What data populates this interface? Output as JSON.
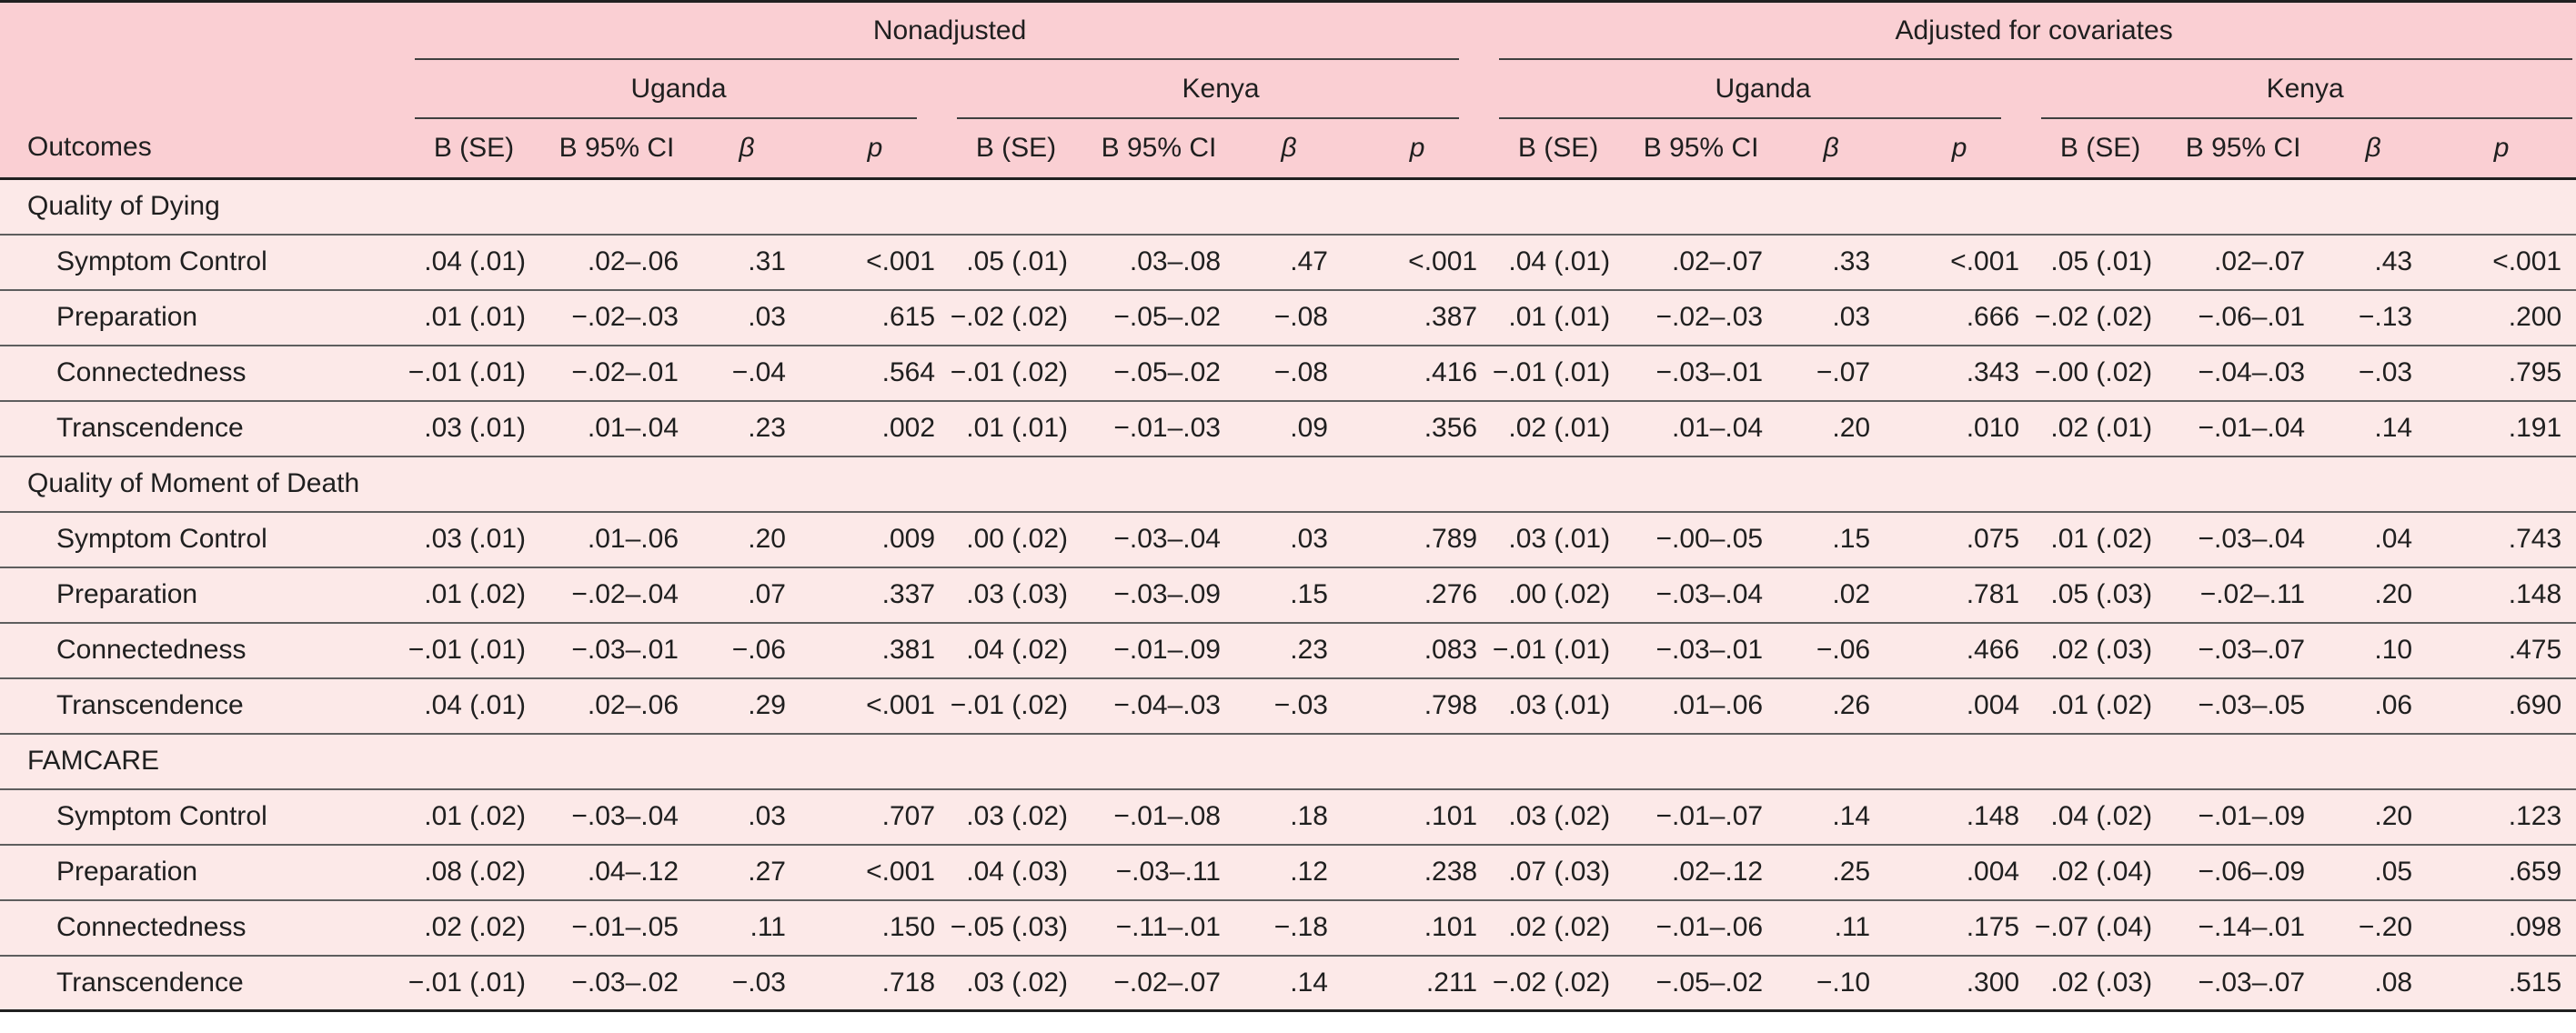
{
  "colors": {
    "header_bg": "#FACFD3",
    "body_bg": "#FCE9E8",
    "rule": "#5E5E5E",
    "heavy_rule": "#202020",
    "spanner_rule": "#3F3F3F",
    "text": "#1F1F1F"
  },
  "table": {
    "outcomes_header": "Outcomes",
    "top_spanners": [
      "Nonadjusted",
      "Adjusted for covariates"
    ],
    "group_spanners": [
      "Uganda",
      "Kenya",
      "Uganda",
      "Kenya"
    ],
    "col_headers": [
      "B (SE)",
      "B 95% CI",
      "β",
      "p"
    ],
    "sections": [
      {
        "title": "Quality of Dying",
        "rows": [
          {
            "label": "Symptom Control",
            "values": [
              ".04 (.01)",
              ".02–.06",
              ".31",
              "<.001",
              ".05 (.01)",
              ".03–.08",
              ".47",
              "<.001",
              ".04 (.01)",
              ".02–.07",
              ".33",
              "<.001",
              ".05 (.01)",
              ".02–.07",
              ".43",
              "<.001"
            ]
          },
          {
            "label": "Preparation",
            "values": [
              ".01 (.01)",
              "−.02–.03",
              ".03",
              ".615",
              "−.02 (.02)",
              "−.05–.02",
              "−.08",
              ".387",
              ".01 (.01)",
              "−.02–.03",
              ".03",
              ".666",
              "−.02 (.02)",
              "−.06–.01",
              "−.13",
              ".200"
            ]
          },
          {
            "label": "Connectedness",
            "values": [
              "−.01 (.01)",
              "−.02–.01",
              "−.04",
              ".564",
              "−.01 (.02)",
              "−.05–.02",
              "−.08",
              ".416",
              "−.01 (.01)",
              "−.03–.01",
              "−.07",
              ".343",
              "−.00 (.02)",
              "−.04–.03",
              "−.03",
              ".795"
            ]
          },
          {
            "label": "Transcendence",
            "values": [
              ".03 (.01)",
              ".01–.04",
              ".23",
              ".002",
              ".01 (.01)",
              "−.01–.03",
              ".09",
              ".356",
              ".02 (.01)",
              ".01–.04",
              ".20",
              ".010",
              ".02 (.01)",
              "−.01–.04",
              ".14",
              ".191"
            ]
          }
        ]
      },
      {
        "title": "Quality of Moment of Death",
        "rows": [
          {
            "label": "Symptom Control",
            "values": [
              ".03 (.01)",
              ".01–.06",
              ".20",
              ".009",
              ".00 (.02)",
              "−.03–.04",
              ".03",
              ".789",
              ".03 (.01)",
              "−.00–.05",
              ".15",
              ".075",
              ".01 (.02)",
              "−.03–.04",
              ".04",
              ".743"
            ]
          },
          {
            "label": "Preparation",
            "values": [
              ".01 (.02)",
              "−.02–.04",
              ".07",
              ".337",
              ".03 (.03)",
              "−.03–.09",
              ".15",
              ".276",
              ".00 (.02)",
              "−.03–.04",
              ".02",
              ".781",
              ".05 (.03)",
              "−.02–.11",
              ".20",
              ".148"
            ]
          },
          {
            "label": "Connectedness",
            "values": [
              "−.01 (.01)",
              "−.03–.01",
              "−.06",
              ".381",
              ".04 (.02)",
              "−.01–.09",
              ".23",
              ".083",
              "−.01 (.01)",
              "−.03–.01",
              "−.06",
              ".466",
              ".02 (.03)",
              "−.03–.07",
              ".10",
              ".475"
            ]
          },
          {
            "label": "Transcendence",
            "values": [
              ".04 (.01)",
              ".02–.06",
              ".29",
              "<.001",
              "−.01 (.02)",
              "−.04–.03",
              "−.03",
              ".798",
              ".03 (.01)",
              ".01–.06",
              ".26",
              ".004",
              ".01 (.02)",
              "−.03–.05",
              ".06",
              ".690"
            ]
          }
        ]
      },
      {
        "title": "FAMCARE",
        "rows": [
          {
            "label": "Symptom Control",
            "values": [
              ".01 (.02)",
              "−.03–.04",
              ".03",
              ".707",
              ".03 (.02)",
              "−.01–.08",
              ".18",
              ".101",
              ".03 (.02)",
              "−.01–.07",
              ".14",
              ".148",
              ".04 (.02)",
              "−.01–.09",
              ".20",
              ".123"
            ]
          },
          {
            "label": "Preparation",
            "values": [
              ".08 (.02)",
              ".04–.12",
              ".27",
              "<.001",
              ".04 (.03)",
              "−.03–.11",
              ".12",
              ".238",
              ".07 (.03)",
              ".02–.12",
              ".25",
              ".004",
              ".02 (.04)",
              "−.06–.09",
              ".05",
              ".659"
            ]
          },
          {
            "label": "Connectedness",
            "values": [
              ".02 (.02)",
              "−.01–.05",
              ".11",
              ".150",
              "−.05 (.03)",
              "−.11–.01",
              "−.18",
              ".101",
              ".02 (.02)",
              "−.01–.06",
              ".11",
              ".175",
              "−.07 (.04)",
              "−.14–.01",
              "−.20",
              ".098"
            ]
          },
          {
            "label": "Transcendence",
            "values": [
              "−.01 (.01)",
              "−.03–.02",
              "−.03",
              ".718",
              ".03 (.02)",
              "−.02–.07",
              ".14",
              ".211",
              "−.02 (.02)",
              "−.05–.02",
              "−.10",
              ".300",
              ".02 (.03)",
              "−.03–.07",
              ".08",
              ".515"
            ]
          }
        ]
      }
    ]
  }
}
